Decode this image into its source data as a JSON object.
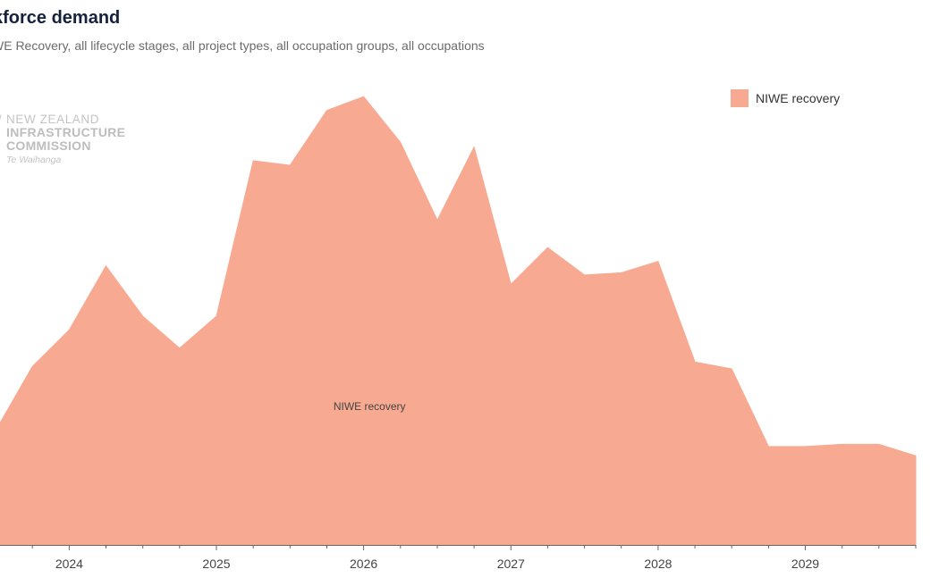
{
  "chart_data": {
    "type": "area",
    "title": "kforce demand",
    "subtitle": "WE Recovery, all lifecycle stages, all project types, all occupation groups, all occupations",
    "xlabel": "",
    "ylabel": "",
    "x_tick_labels": [
      "2024",
      "2025",
      "2026",
      "2027",
      "2028",
      "2029"
    ],
    "x_ticks": [
      2024,
      2025,
      2026,
      2027,
      2028,
      2029
    ],
    "xlim": [
      2023.53,
      2029.75
    ],
    "ylim": [
      0,
      100
    ],
    "grid": false,
    "legend": "top-right",
    "color": "#f7aa91",
    "series": [
      {
        "name": "NIWE recovery",
        "x": [
          2023.5,
          2023.75,
          2024.0,
          2024.25,
          2024.5,
          2024.75,
          2025.0,
          2025.25,
          2025.5,
          2025.75,
          2026.0,
          2026.25,
          2026.5,
          2026.75,
          2027.0,
          2027.25,
          2027.5,
          2027.75,
          2028.0,
          2028.25,
          2028.5,
          2028.75,
          2029.0,
          2029.25,
          2029.5,
          2029.75
        ],
        "values": [
          25,
          39,
          47,
          61,
          50,
          43,
          50,
          84,
          83,
          95,
          98,
          88,
          71,
          87,
          57,
          65,
          59,
          59.5,
          62,
          40,
          38.5,
          21.5,
          21.5,
          22,
          22,
          19.5
        ]
      }
    ],
    "annotations": [
      "NIWE recovery"
    ]
  },
  "legend_items": [
    {
      "label": "NIWE recovery",
      "color": "#f7aa91"
    }
  ],
  "watermark": {
    "line1": "NEW ZEALAND",
    "line2": "INFRASTRUCTURE",
    "line3": "COMMISSION",
    "line4": "Te Waihanga"
  }
}
